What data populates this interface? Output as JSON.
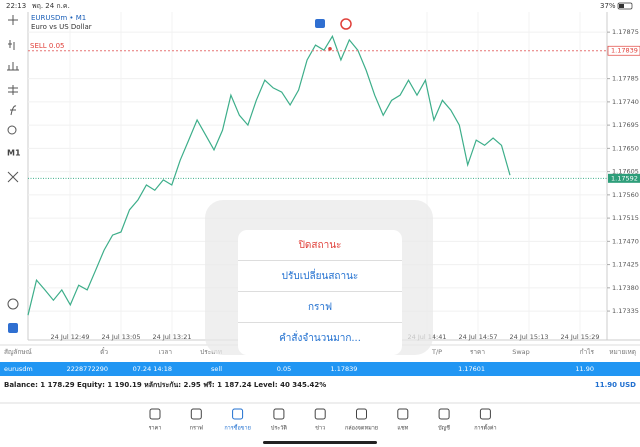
{
  "status_bar": {
    "time": "22:13",
    "date": "พฤ. 24 ก.ค.",
    "battery": "37%"
  },
  "chart": {
    "type": "line",
    "symbol": "EURUSDm • M1",
    "description": "Euro vs US Dollar",
    "timeframe": "M1",
    "order_label": "SELL 0.05",
    "color": "#3dae8a",
    "grid": true,
    "values": [
      1.17327,
      1.17395,
      1.17376,
      1.17356,
      1.17376,
      1.17347,
      1.17385,
      1.17376,
      1.17414,
      1.17453,
      1.17482,
      1.17488,
      1.17531,
      1.1755,
      1.17579,
      1.17569,
      1.17589,
      1.17579,
      1.17627,
      1.17666,
      1.17705,
      1.17676,
      1.17647,
      1.17685,
      1.17753,
      1.17714,
      1.17695,
      1.17743,
      1.17782,
      1.17767,
      1.17759,
      1.17734,
      1.17763,
      1.17821,
      1.1785,
      1.1784,
      1.17867,
      1.17821,
      1.1786,
      1.1784,
      1.17801,
      1.17753,
      1.17714,
      1.17743,
      1.17753,
      1.17782,
      1.17753,
      1.17782,
      1.17705,
      1.17743,
      1.17724,
      1.17695,
      1.17618,
      1.17666,
      1.17656,
      1.1767,
      1.17656,
      1.17598
    ],
    "ylim": [
      1.17279,
      1.17914
    ],
    "yticks": [
      {
        "value": 1.17875,
        "label": "1.17875"
      },
      {
        "value": 1.17785,
        "label": "1.17785"
      },
      {
        "value": 1.1774,
        "label": "1.17740"
      },
      {
        "value": 1.17695,
        "label": "1.17695"
      },
      {
        "value": 1.1765,
        "label": "1.17650"
      },
      {
        "value": 1.17605,
        "label": "1.17605"
      },
      {
        "value": 1.1756,
        "label": "1.17560"
      },
      {
        "value": 1.17515,
        "label": "1.17515"
      },
      {
        "value": 1.1747,
        "label": "1.17470"
      },
      {
        "value": 1.17425,
        "label": "1.17425"
      },
      {
        "value": 1.1738,
        "label": "1.17380"
      },
      {
        "value": 1.17335,
        "label": "1.17335"
      }
    ],
    "x_labels": [
      "24 Jul 12:49",
      "24 Jul 13:05",
      "24 Jul 13:21",
      null,
      null,
      null,
      null,
      "24 Jul 14:41",
      "24 Jul 14:57",
      "24 Jul 15:13",
      "24 Jul 15:29"
    ],
    "sell_price": 1.17839,
    "bid_price": 1.17592
  },
  "table": {
    "headers": [
      "สัญลักษณ์",
      "ตั๋ว",
      "เวลา",
      "ประเภท",
      "T/P",
      "ราคา",
      "Swap",
      "กำไร",
      "หมายเหตุ"
    ],
    "row": [
      "eurusdm",
      "2228772290",
      "07.24 14:18",
      "sell",
      "0.05",
      "1.17839",
      "1.17601",
      "11.90"
    ],
    "balance": "Balance: 1 178.29 Equity: 1 190.19 หลักประกัน: 2.95 ฟรี: 1 187.24 Level: 40 345.42%",
    "total": "11.90  USD"
  },
  "popup": {
    "items": [
      "ปิดสถานะ",
      "ปรับเปลี่ยนสถานะ",
      "กราฟ",
      "คำสั่งจำนวนมาก..."
    ]
  },
  "nav": {
    "items": [
      "ราคา",
      "กราฟ",
      "การซื้อขาย",
      "ประวัติ",
      "ข่าว",
      "กล่องจดหมาย",
      "แชท",
      "บัญชี",
      "การตั้งค่า"
    ]
  }
}
